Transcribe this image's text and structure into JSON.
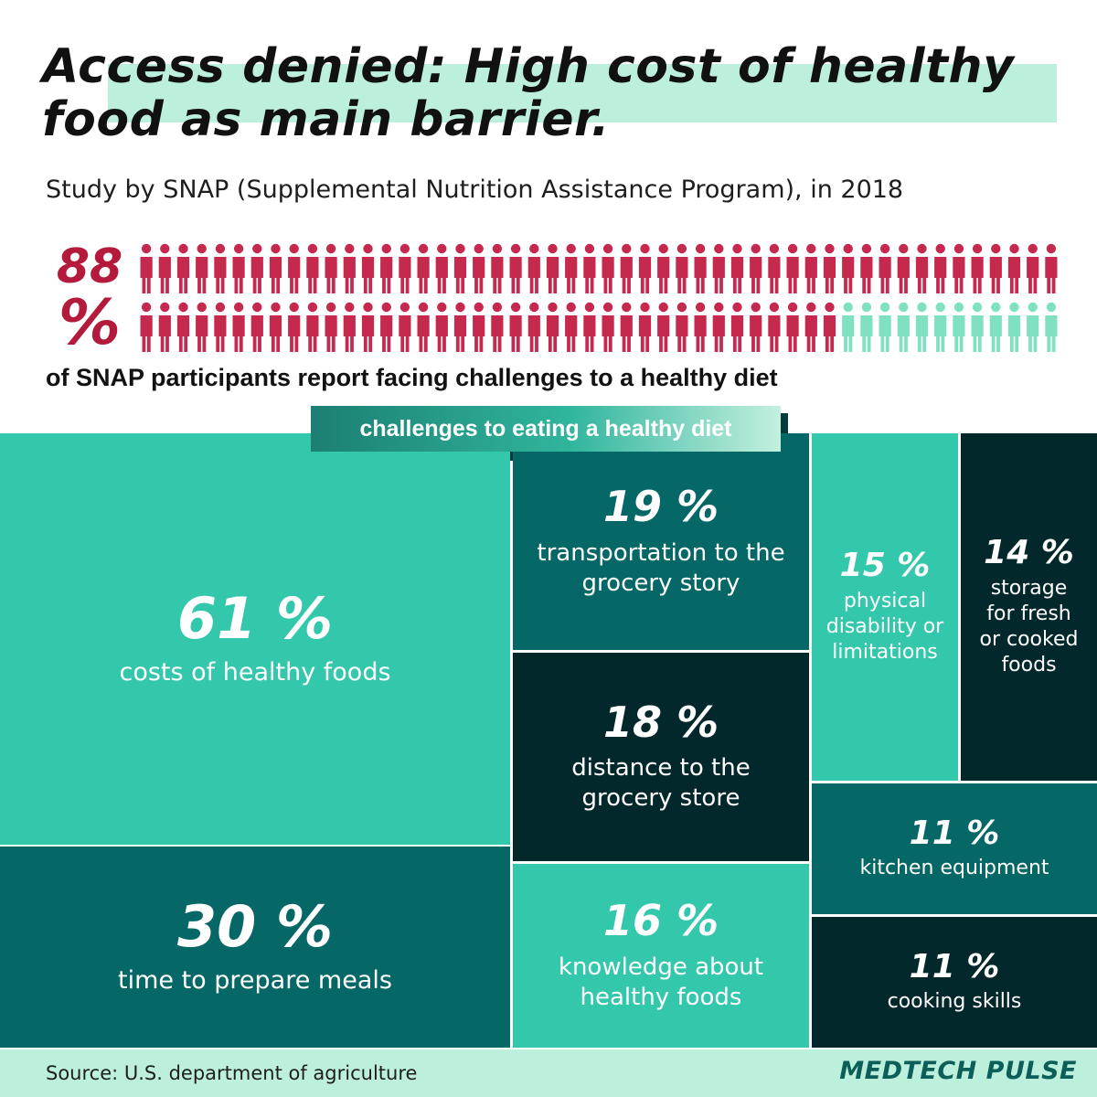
{
  "header": {
    "title": "Access denied: High cost of healthy food as main barrier.",
    "subtitle": "Study by SNAP (Supplemental Nutrition Assistance Program), in 2018"
  },
  "stat": {
    "pct_line1": "88",
    "pct_line2": "%",
    "caption": "of SNAP participants report facing challenges to a healthy diet",
    "total_icons": 100,
    "highlighted_icons": 88
  },
  "colors": {
    "people_highlight": "#c5294e",
    "people_rest": "#7fe0c2",
    "teal_light": "#33c7ab",
    "teal_mid": "#056766",
    "teal_dark": "#03282c"
  },
  "section": {
    "label": "challenges to eating a healthy diet"
  },
  "chart_data": {
    "type": "treemap",
    "title": "challenges to eating a healthy diet",
    "categories": [
      "costs of healthy foods",
      "time to prepare meals",
      "transportation to the grocery story",
      "distance to the grocery store",
      "knowledge about healthy foods",
      "physical disability or limitations",
      "storage for fresh or cooked foods",
      "kitchen equipment",
      "cooking skills"
    ],
    "values": [
      61,
      30,
      19,
      18,
      16,
      15,
      14,
      11,
      11
    ],
    "unit": "%",
    "items": [
      {
        "id": "costs",
        "value": 61,
        "pct_text": "61 %",
        "label": "costs of healthy foods",
        "color": "#33c7ab"
      },
      {
        "id": "time",
        "value": 30,
        "pct_text": "30 %",
        "label": "time to prepare meals",
        "color": "#056766"
      },
      {
        "id": "transport",
        "value": 19,
        "pct_text": "19 %",
        "label": "transportation to the\ngrocery story",
        "color": "#056766"
      },
      {
        "id": "distance",
        "value": 18,
        "pct_text": "18 %",
        "label": "distance to the\ngrocery store",
        "color": "#03282c"
      },
      {
        "id": "knowledge",
        "value": 16,
        "pct_text": "16 %",
        "label": "knowledge about\nhealthy foods",
        "color": "#33c7ab"
      },
      {
        "id": "disability",
        "value": 15,
        "pct_text": "15 %",
        "label": "physical\ndisability or\nlimitations",
        "color": "#33c7ab"
      },
      {
        "id": "storage",
        "value": 14,
        "pct_text": "14 %",
        "label": "storage\nfor fresh\nor cooked\nfoods",
        "color": "#03282c"
      },
      {
        "id": "kitchen",
        "value": 11,
        "pct_text": "11 %",
        "label": "kitchen equipment",
        "color": "#056766"
      },
      {
        "id": "cooking",
        "value": 11,
        "pct_text": "11 %",
        "label": "cooking skills",
        "color": "#03282c"
      }
    ]
  },
  "footer": {
    "source": "Source: U.S. department of agriculture",
    "brand": "MEDTECH PULSE"
  }
}
